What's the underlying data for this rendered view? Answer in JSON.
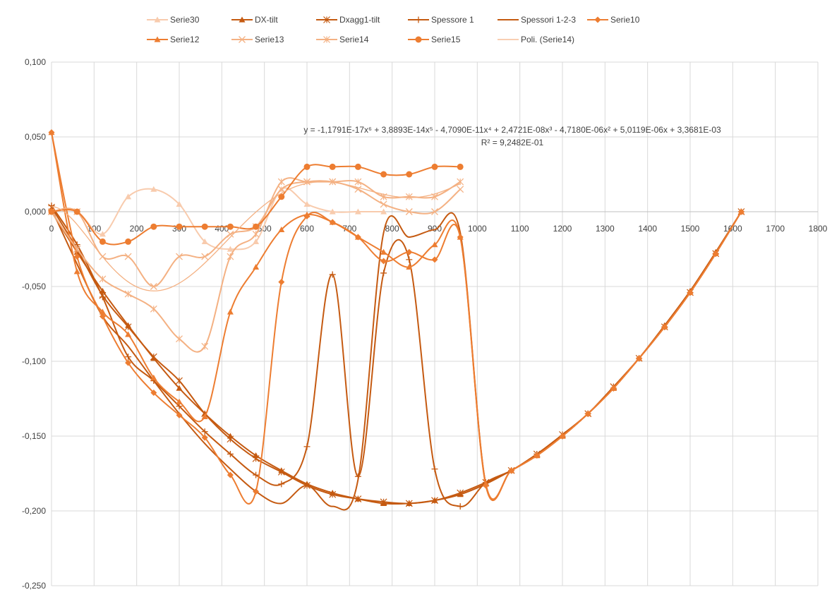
{
  "chart_data": {
    "type": "scatter",
    "title": "",
    "xlabel": "",
    "ylabel": "",
    "xlim": [
      0,
      1800
    ],
    "ylim": [
      -0.25,
      0.1
    ],
    "x_ticks": [
      "0",
      "100",
      "200",
      "300",
      "400",
      "500",
      "600",
      "700",
      "800",
      "900",
      "1000",
      "1100",
      "1200",
      "1300",
      "1400",
      "1500",
      "1600",
      "1700",
      "1800"
    ],
    "y_ticks": [
      "0,100",
      "0,050",
      "0,000",
      "-0,050",
      "-0,100",
      "-0,150",
      "-0,200",
      "-0,250"
    ],
    "grid": true,
    "legend_position": "top",
    "trendline_equation": "y = -1,1791E-17x⁶ + 3,8893E-14x⁵ - 4,7090E-11x⁴ + 2,4721E-08x³ - 4,7180E-06x² + 5,0119E-06x + 3,3681E-03",
    "trendline_r2": "R² = 9,2482E-01",
    "series": [
      {
        "name": "Serie30",
        "marker": "triangle",
        "color": "#f8cbad",
        "x": [
          0,
          60,
          120,
          180,
          240,
          300,
          360,
          420,
          480,
          540,
          600,
          660,
          720,
          780
        ],
        "y": [
          0.0,
          0.0,
          -0.015,
          0.01,
          0.015,
          0.005,
          -0.02,
          -0.025,
          -0.02,
          0.015,
          0.005,
          0.0,
          0.0,
          0.0
        ]
      },
      {
        "name": "DX-tilt",
        "marker": "triangle",
        "color": "#c55a11",
        "x": [
          0,
          60,
          120,
          180,
          240,
          300,
          360,
          420,
          480,
          540,
          600,
          660,
          720,
          780,
          840,
          900,
          960,
          1020,
          1080,
          1140,
          1200,
          1260,
          1320,
          1380,
          1440,
          1500,
          1560,
          1620
        ],
        "y": [
          0.0,
          -0.027,
          -0.053,
          -0.076,
          -0.098,
          -0.118,
          -0.135,
          -0.15,
          -0.163,
          -0.173,
          -0.182,
          -0.188,
          -0.192,
          -0.195,
          -0.195,
          -0.193,
          -0.189,
          -0.182,
          -0.173,
          -0.163,
          -0.15,
          -0.135,
          -0.118,
          -0.098,
          -0.076,
          -0.053,
          -0.027,
          0.0
        ]
      },
      {
        "name": "Dxagg1-tilt",
        "marker": "star",
        "color": "#c55a11",
        "x": [
          0,
          60,
          120,
          180,
          240,
          300,
          360,
          420,
          480,
          540,
          600,
          660,
          720,
          780,
          840,
          900,
          960,
          1020,
          1080,
          1140,
          1200,
          1260,
          1320,
          1380,
          1440,
          1500,
          1560,
          1620
        ],
        "y": [
          0.003,
          -0.025,
          -0.056,
          -0.077,
          -0.097,
          -0.113,
          -0.135,
          -0.152,
          -0.165,
          -0.174,
          -0.183,
          -0.189,
          -0.192,
          -0.194,
          -0.195,
          -0.193,
          -0.188,
          -0.181,
          -0.173,
          -0.162,
          -0.149,
          -0.135,
          -0.117,
          -0.098,
          -0.077,
          -0.054,
          -0.028,
          0.0
        ]
      },
      {
        "name": "Spessore 1",
        "marker": "plus",
        "color": "#c55a11",
        "x": [
          0,
          60,
          120,
          180,
          240,
          300,
          360,
          420,
          480,
          540,
          600,
          660,
          720,
          780,
          840,
          900,
          960,
          1020,
          1080,
          1140,
          1200,
          1260,
          1320,
          1380,
          1440,
          1500,
          1560,
          1620
        ],
        "y": [
          0.004,
          -0.022,
          -0.057,
          -0.097,
          -0.113,
          -0.13,
          -0.147,
          -0.162,
          -0.176,
          -0.182,
          -0.157,
          -0.042,
          -0.177,
          -0.041,
          -0.032,
          -0.172,
          -0.197,
          -0.181,
          -0.173,
          -0.162,
          -0.15,
          -0.135,
          -0.118,
          -0.098,
          -0.077,
          -0.054,
          -0.028,
          0.0
        ]
      },
      {
        "name": "Spessori 1-2-3",
        "marker": "none",
        "color": "#c55a11",
        "x": [
          0,
          60,
          120,
          180,
          240,
          300,
          360,
          420,
          480,
          540,
          600,
          660,
          720,
          780,
          840,
          900,
          960,
          1020,
          1080,
          1140,
          1200,
          1260,
          1320,
          1380,
          1440,
          1500,
          1560,
          1620
        ],
        "y": [
          0.002,
          -0.035,
          -0.07,
          -0.09,
          -0.113,
          -0.135,
          -0.155,
          -0.172,
          -0.187,
          -0.195,
          -0.183,
          -0.197,
          -0.179,
          -0.014,
          -0.017,
          -0.012,
          -0.014,
          -0.182,
          -0.173,
          -0.163,
          -0.15,
          -0.135,
          -0.118,
          -0.098,
          -0.077,
          -0.054,
          -0.028,
          0.0
        ]
      },
      {
        "name": "Serie10",
        "marker": "diamond",
        "color": "#ed7d31",
        "x": [
          0,
          60,
          120,
          180,
          240,
          300,
          360,
          420,
          480,
          540,
          600,
          660,
          720,
          780,
          840,
          900,
          960,
          1020,
          1080,
          1140,
          1200,
          1260,
          1320,
          1380,
          1440,
          1500,
          1560,
          1620
        ],
        "y": [
          0.053,
          -0.03,
          -0.07,
          -0.101,
          -0.121,
          -0.136,
          -0.151,
          -0.176,
          -0.187,
          -0.047,
          -0.003,
          -0.007,
          -0.017,
          -0.033,
          -0.027,
          -0.032,
          -0.017,
          -0.183,
          -0.173,
          -0.163,
          -0.15,
          -0.135,
          -0.118,
          -0.098,
          -0.077,
          -0.054,
          -0.028,
          0.0
        ]
      },
      {
        "name": "Serie12",
        "marker": "triangle",
        "color": "#ed7d31",
        "x": [
          0,
          60,
          120,
          180,
          240,
          300,
          360,
          420,
          480,
          540,
          600,
          660,
          720,
          780,
          840,
          900,
          960,
          1020,
          1080,
          1140,
          1200,
          1260,
          1320,
          1380,
          1440,
          1500,
          1560,
          1620
        ],
        "y": [
          0.053,
          -0.04,
          -0.067,
          -0.082,
          -0.111,
          -0.127,
          -0.137,
          -0.067,
          -0.037,
          -0.012,
          -0.002,
          -0.007,
          -0.017,
          -0.027,
          -0.037,
          -0.022,
          -0.017,
          -0.182,
          -0.173,
          -0.163,
          -0.15,
          -0.135,
          -0.118,
          -0.098,
          -0.077,
          -0.054,
          -0.028,
          0.0
        ]
      },
      {
        "name": "Serie13",
        "marker": "x",
        "color": "#f4b183",
        "x": [
          0,
          60,
          120,
          180,
          240,
          300,
          360,
          420,
          480,
          540,
          600,
          660,
          720,
          780,
          840,
          900,
          960
        ],
        "y": [
          0.0,
          0.0,
          -0.03,
          -0.03,
          -0.05,
          -0.03,
          -0.03,
          -0.015,
          -0.01,
          0.015,
          0.02,
          0.02,
          0.015,
          0.005,
          0.0,
          0.0,
          0.015
        ]
      },
      {
        "name": "Serie14",
        "marker": "star",
        "color": "#f4b183",
        "x": [
          0,
          60,
          120,
          180,
          240,
          300,
          360,
          420,
          480,
          540,
          600,
          660,
          720,
          780,
          840,
          900,
          960
        ],
        "y": [
          0.0,
          -0.025,
          -0.045,
          -0.055,
          -0.065,
          -0.085,
          -0.09,
          -0.03,
          -0.015,
          0.02,
          0.02,
          0.02,
          0.02,
          0.01,
          0.01,
          0.01,
          0.02
        ]
      },
      {
        "name": "Serie15",
        "marker": "circle",
        "color": "#ed7d31",
        "x": [
          0,
          60,
          120,
          180,
          240,
          300,
          360,
          420,
          480,
          540,
          600,
          660,
          720,
          780,
          840,
          900,
          960
        ],
        "y": [
          0.0,
          0.0,
          -0.02,
          -0.02,
          -0.01,
          -0.01,
          -0.01,
          -0.01,
          -0.01,
          0.01,
          0.03,
          0.03,
          0.03,
          0.025,
          0.025,
          0.03,
          0.03
        ]
      }
    ],
    "trendline": {
      "name": "Poli. (Serie14)",
      "color": "#f4b183",
      "coefficients": [
        0.0033681,
        5.0119e-06,
        -4.718e-06,
        2.4721e-08,
        -4.709e-11,
        3.8893e-14,
        -1.1791e-17
      ],
      "xrange": [
        0,
        960
      ]
    }
  }
}
